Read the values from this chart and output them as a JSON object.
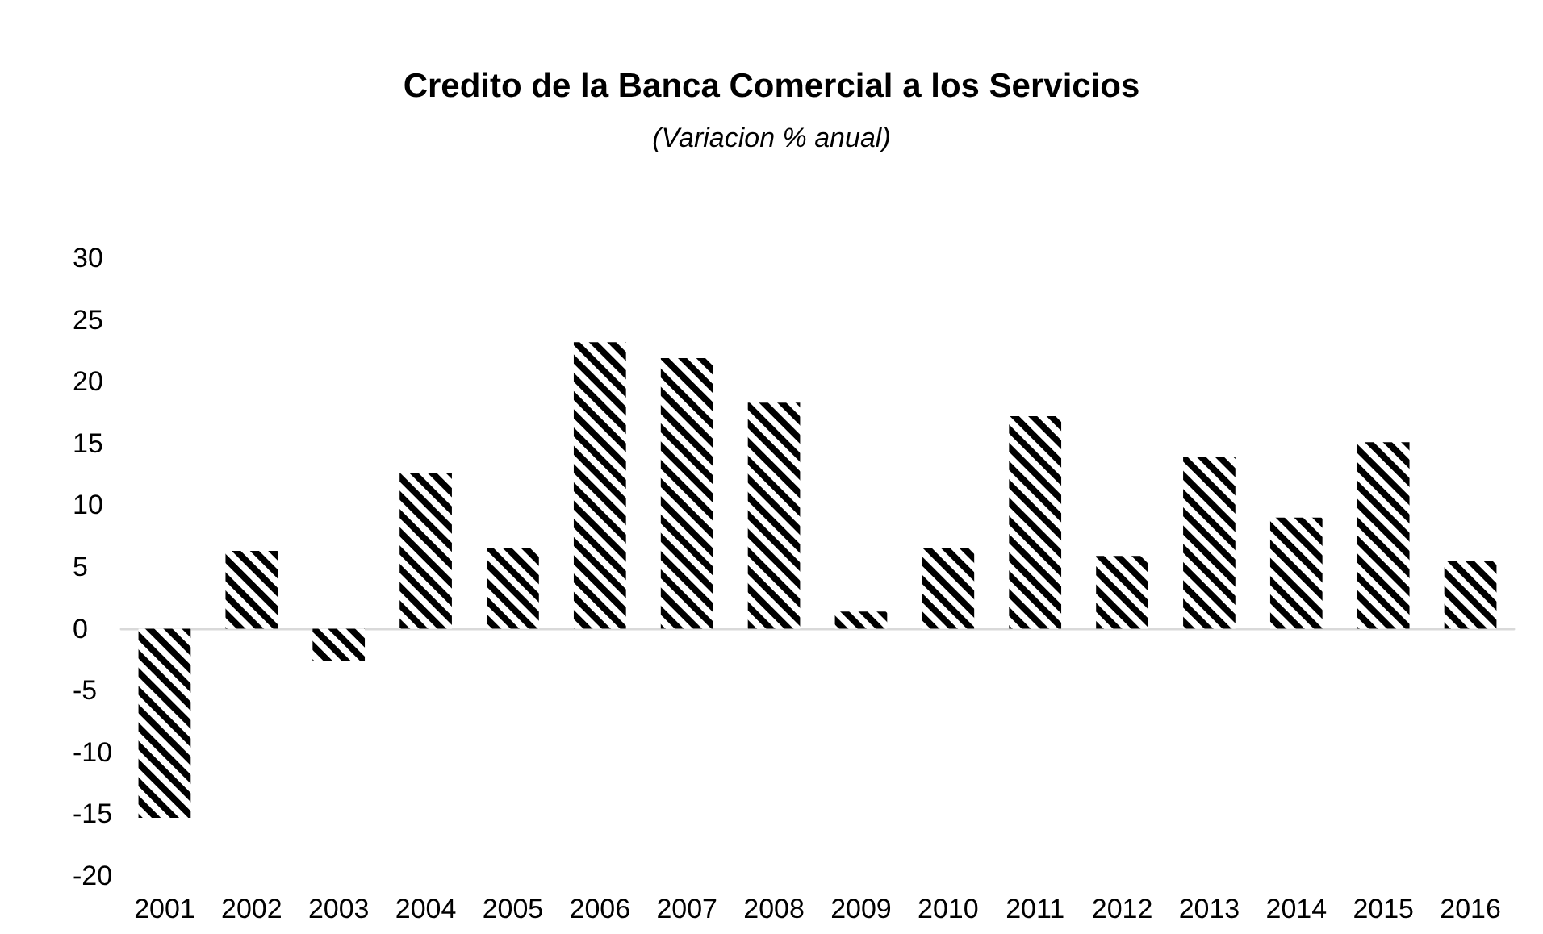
{
  "chart_data": {
    "type": "bar",
    "title": "Credito de la Banca Comercial a los Servicios",
    "subtitle": "(Variacion % anual)",
    "categories": [
      "2001",
      "2002",
      "2003",
      "2004",
      "2005",
      "2006",
      "2007",
      "2008",
      "2009",
      "2010",
      "2011",
      "2012",
      "2013",
      "2014",
      "2015",
      "2016"
    ],
    "values": [
      -15.3,
      6.3,
      -2.6,
      12.6,
      6.5,
      23.2,
      21.9,
      18.3,
      1.4,
      6.5,
      17.2,
      5.9,
      13.9,
      9.0,
      15.1,
      5.5
    ],
    "color": "#000000",
    "ylim": [
      -20,
      30
    ],
    "yticks": [
      -20,
      -15,
      -10,
      -5,
      0,
      5,
      10,
      15,
      20,
      25,
      30
    ]
  }
}
